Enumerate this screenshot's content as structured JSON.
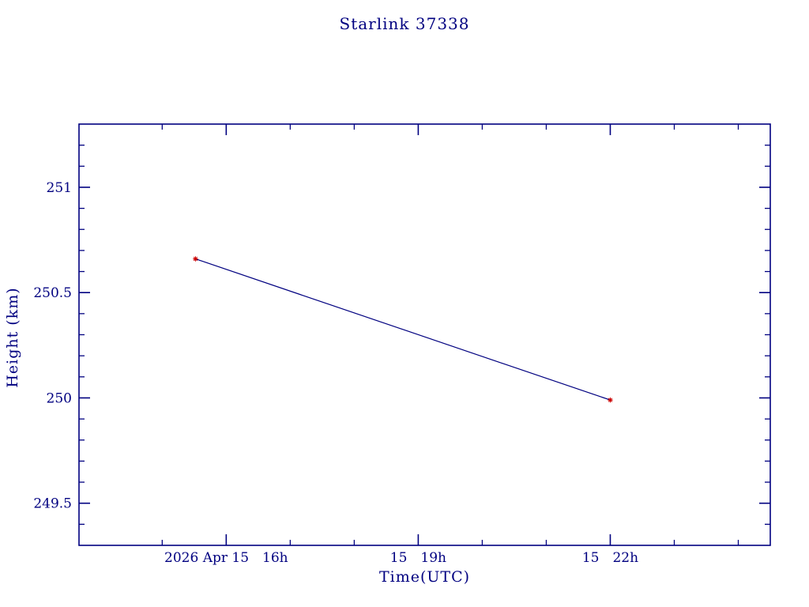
{
  "page": {
    "title": "Starlink 37338"
  },
  "chart_data": {
    "type": "line",
    "title": "Starlink 37338",
    "xlabel": "Time(UTC)",
    "ylabel": "Height (km)",
    "xlim": [
      13.7,
      24.5
    ],
    "ylim": [
      249.3,
      251.3
    ],
    "x_axis_unit": "hours UTC on 2026 Apr 15",
    "x_major_ticks": [
      {
        "value": 16,
        "label": "2026 Apr 15  16h"
      },
      {
        "value": 19,
        "label": "15  19h"
      },
      {
        "value": 22,
        "label": "15  22h"
      }
    ],
    "x_minor_step": 1,
    "y_major_ticks": [
      {
        "value": 249.5,
        "label": "249.5"
      },
      {
        "value": 250,
        "label": "250"
      },
      {
        "value": 250.5,
        "label": "250.5"
      },
      {
        "value": 251,
        "label": "251"
      }
    ],
    "y_minor_step": 0.1,
    "series": [
      {
        "name": "height",
        "x": [
          15.52,
          22.0
        ],
        "y": [
          250.66,
          249.99
        ]
      }
    ],
    "legend": "none",
    "grid": false,
    "colors": {
      "axis": "#000080",
      "text": "#000080",
      "line": "#000080",
      "marker": "#cc0000",
      "background": "#ffffff"
    }
  }
}
